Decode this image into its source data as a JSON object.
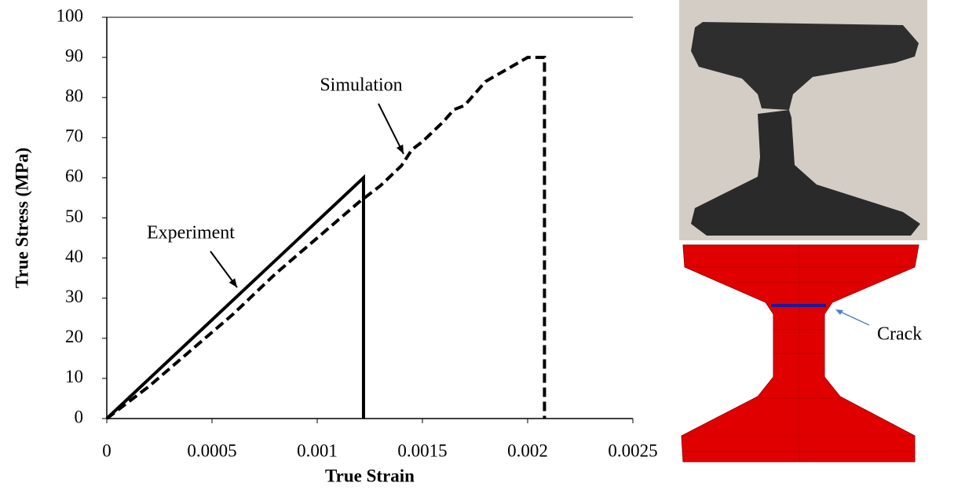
{
  "chart_data": {
    "type": "line",
    "xlabel": "True Strain",
    "ylabel": "True Stress (MPa)",
    "xlim": [
      0,
      0.0025
    ],
    "ylim": [
      0,
      100
    ],
    "xticks": [
      0,
      0.0005,
      0.001,
      0.0015,
      0.002,
      0.0025
    ],
    "yticks": [
      0,
      10,
      20,
      30,
      40,
      50,
      60,
      70,
      80,
      90,
      100
    ],
    "series": [
      {
        "name": "Experiment",
        "color": "#000000",
        "dash": false,
        "x": [
          0,
          0.00122,
          0.00122
        ],
        "values": [
          0,
          60,
          0
        ]
      },
      {
        "name": "Simulation",
        "color": "#000000",
        "dash": true,
        "x": [
          0,
          0.0002,
          0.0004,
          0.0006,
          0.0008,
          0.001,
          0.0012,
          0.0013,
          0.0014,
          0.00145,
          0.0015,
          0.0016,
          0.00165,
          0.0017,
          0.0018,
          0.0019,
          0.002,
          0.00208,
          0.00208
        ],
        "values": [
          0,
          8,
          17,
          26,
          36,
          45,
          54,
          58,
          63,
          67,
          69,
          74,
          77,
          78,
          84,
          87,
          90,
          90,
          0
        ]
      }
    ],
    "annotation": "Crack"
  }
}
